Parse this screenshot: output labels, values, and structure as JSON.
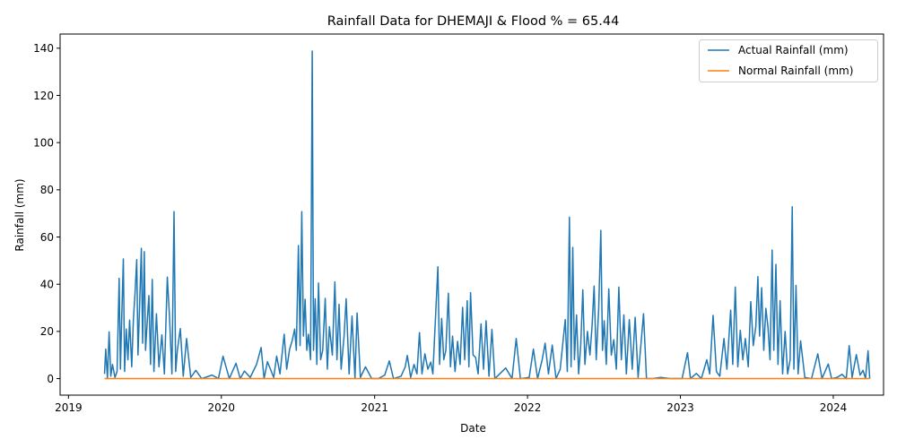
{
  "chart_data": {
    "type": "line",
    "title": "Rainfall Data for DHEMAJI & Flood % = 65.44",
    "xlabel": "Date",
    "ylabel": "Rainfall (mm)",
    "x_range": [
      "2018-12-12",
      "2024-04-30"
    ],
    "x_ticks": [
      {
        "date": "2019-01-01",
        "label": "2019"
      },
      {
        "date": "2020-01-01",
        "label": "2020"
      },
      {
        "date": "2021-01-01",
        "label": "2021"
      },
      {
        "date": "2022-01-01",
        "label": "2022"
      },
      {
        "date": "2023-01-01",
        "label": "2023"
      },
      {
        "date": "2024-01-01",
        "label": "2024"
      }
    ],
    "ylim": [
      -7,
      146
    ],
    "y_ticks": [
      0,
      20,
      40,
      60,
      80,
      100,
      120,
      140
    ],
    "grid": false,
    "legend_position": "top-right",
    "series": [
      {
        "name": "Actual Rainfall (mm)",
        "color": "#1f77b4",
        "points": [
          [
            "2019-03-28",
            2
          ],
          [
            "2019-03-31",
            12.5
          ],
          [
            "2019-04-04",
            0
          ],
          [
            "2019-04-08",
            19.8
          ],
          [
            "2019-04-12",
            1
          ],
          [
            "2019-04-16",
            6
          ],
          [
            "2019-04-22",
            0.5
          ],
          [
            "2019-04-27",
            3
          ],
          [
            "2019-05-02",
            42.5
          ],
          [
            "2019-05-05",
            4
          ],
          [
            "2019-05-08",
            25
          ],
          [
            "2019-05-12",
            50.7
          ],
          [
            "2019-05-15",
            3
          ],
          [
            "2019-05-19",
            21
          ],
          [
            "2019-05-23",
            8
          ],
          [
            "2019-05-27",
            24.8
          ],
          [
            "2019-06-01",
            5
          ],
          [
            "2019-06-05",
            25
          ],
          [
            "2019-06-09",
            36.5
          ],
          [
            "2019-06-13",
            50.4
          ],
          [
            "2019-06-16",
            10
          ],
          [
            "2019-06-20",
            32
          ],
          [
            "2019-06-24",
            55.2
          ],
          [
            "2019-06-27",
            15
          ],
          [
            "2019-07-01",
            53.8
          ],
          [
            "2019-07-04",
            12
          ],
          [
            "2019-07-08",
            24
          ],
          [
            "2019-07-12",
            35.2
          ],
          [
            "2019-07-16",
            6
          ],
          [
            "2019-07-20",
            42
          ],
          [
            "2019-07-24",
            3
          ],
          [
            "2019-07-30",
            27.5
          ],
          [
            "2019-08-05",
            5
          ],
          [
            "2019-08-12",
            18.6
          ],
          [
            "2019-08-18",
            2
          ],
          [
            "2019-08-25",
            43
          ],
          [
            "2019-08-30",
            27
          ],
          [
            "2019-09-05",
            2
          ],
          [
            "2019-09-10",
            70.8
          ],
          [
            "2019-09-14",
            3
          ],
          [
            "2019-09-18",
            12
          ],
          [
            "2019-09-25",
            21.2
          ],
          [
            "2019-10-02",
            1
          ],
          [
            "2019-10-10",
            17
          ],
          [
            "2019-10-20",
            0.5
          ],
          [
            "2019-11-01",
            3.5
          ],
          [
            "2019-11-15",
            0
          ],
          [
            "2019-12-10",
            1.5
          ],
          [
            "2019-12-25",
            0
          ],
          [
            "2020-01-05",
            9.5
          ],
          [
            "2020-01-20",
            0
          ],
          [
            "2020-02-05",
            6.5
          ],
          [
            "2020-02-15",
            0
          ],
          [
            "2020-02-25",
            3.2
          ],
          [
            "2020-03-10",
            0.5
          ],
          [
            "2020-03-25",
            6
          ],
          [
            "2020-04-05",
            13.2
          ],
          [
            "2020-04-12",
            0
          ],
          [
            "2020-04-20",
            7.2
          ],
          [
            "2020-05-05",
            0.5
          ],
          [
            "2020-05-12",
            9.5
          ],
          [
            "2020-05-20",
            2
          ],
          [
            "2020-05-30",
            18.8
          ],
          [
            "2020-06-05",
            4
          ],
          [
            "2020-06-12",
            12.5
          ],
          [
            "2020-06-18",
            16
          ],
          [
            "2020-06-24",
            21
          ],
          [
            "2020-06-28",
            12
          ],
          [
            "2020-07-03",
            56.4
          ],
          [
            "2020-07-07",
            14
          ],
          [
            "2020-07-11",
            70.8
          ],
          [
            "2020-07-15",
            18
          ],
          [
            "2020-07-19",
            33.6
          ],
          [
            "2020-07-23",
            12
          ],
          [
            "2020-07-27",
            18.8
          ],
          [
            "2020-08-01",
            8
          ],
          [
            "2020-08-05",
            138.8
          ],
          [
            "2020-08-08",
            12
          ],
          [
            "2020-08-12",
            33.8
          ],
          [
            "2020-08-16",
            6
          ],
          [
            "2020-08-20",
            40.5
          ],
          [
            "2020-08-25",
            8
          ],
          [
            "2020-08-30",
            12
          ],
          [
            "2020-09-05",
            34
          ],
          [
            "2020-09-10",
            4
          ],
          [
            "2020-09-15",
            22
          ],
          [
            "2020-09-22",
            10
          ],
          [
            "2020-09-28",
            41
          ],
          [
            "2020-10-03",
            8
          ],
          [
            "2020-10-08",
            31.5
          ],
          [
            "2020-10-13",
            4
          ],
          [
            "2020-10-20",
            18
          ],
          [
            "2020-10-25",
            33.8
          ],
          [
            "2020-11-01",
            2
          ],
          [
            "2020-11-08",
            26.5
          ],
          [
            "2020-11-15",
            0
          ],
          [
            "2020-11-20",
            27.8
          ],
          [
            "2020-11-28",
            0.5
          ],
          [
            "2020-12-10",
            5
          ],
          [
            "2020-12-25",
            0
          ],
          [
            "2021-01-10",
            0
          ],
          [
            "2021-01-25",
            1.5
          ],
          [
            "2021-02-05",
            7.5
          ],
          [
            "2021-02-15",
            0
          ],
          [
            "2021-03-05",
            1
          ],
          [
            "2021-03-15",
            5
          ],
          [
            "2021-03-20",
            9.8
          ],
          [
            "2021-03-28",
            0.5
          ],
          [
            "2021-04-05",
            6
          ],
          [
            "2021-04-12",
            2
          ],
          [
            "2021-04-18",
            19.5
          ],
          [
            "2021-04-24",
            2
          ],
          [
            "2021-05-01",
            10.5
          ],
          [
            "2021-05-08",
            4
          ],
          [
            "2021-05-15",
            7
          ],
          [
            "2021-05-20",
            2
          ],
          [
            "2021-05-27",
            28.5
          ],
          [
            "2021-06-01",
            47.4
          ],
          [
            "2021-06-05",
            6
          ],
          [
            "2021-06-10",
            25.5
          ],
          [
            "2021-06-15",
            8
          ],
          [
            "2021-06-20",
            12
          ],
          [
            "2021-06-26",
            36.2
          ],
          [
            "2021-07-01",
            5
          ],
          [
            "2021-07-06",
            18
          ],
          [
            "2021-07-12",
            3
          ],
          [
            "2021-07-18",
            15.8
          ],
          [
            "2021-07-24",
            6
          ],
          [
            "2021-07-30",
            30.2
          ],
          [
            "2021-08-04",
            8
          ],
          [
            "2021-08-10",
            33
          ],
          [
            "2021-08-14",
            5
          ],
          [
            "2021-08-18",
            36.4
          ],
          [
            "2021-08-24",
            10
          ],
          [
            "2021-08-30",
            9
          ],
          [
            "2021-09-05",
            2
          ],
          [
            "2021-09-12",
            23.2
          ],
          [
            "2021-09-18",
            4
          ],
          [
            "2021-09-24",
            24.5
          ],
          [
            "2021-10-01",
            1
          ],
          [
            "2021-10-08",
            20.8
          ],
          [
            "2021-10-15",
            0
          ],
          [
            "2021-11-10",
            4.5
          ],
          [
            "2021-11-25",
            0
          ],
          [
            "2021-12-05",
            17
          ],
          [
            "2021-12-15",
            0
          ],
          [
            "2022-01-05",
            0.5
          ],
          [
            "2022-01-15",
            12.5
          ],
          [
            "2022-01-25",
            0
          ],
          [
            "2022-02-05",
            8
          ],
          [
            "2022-02-12",
            15
          ],
          [
            "2022-02-20",
            2
          ],
          [
            "2022-03-01",
            14.2
          ],
          [
            "2022-03-10",
            0
          ],
          [
            "2022-03-20",
            4
          ],
          [
            "2022-04-01",
            25
          ],
          [
            "2022-04-06",
            3
          ],
          [
            "2022-04-11",
            68.4
          ],
          [
            "2022-04-15",
            5
          ],
          [
            "2022-04-19",
            55.6
          ],
          [
            "2022-04-23",
            8
          ],
          [
            "2022-04-28",
            27
          ],
          [
            "2022-05-03",
            2
          ],
          [
            "2022-05-08",
            14
          ],
          [
            "2022-05-13",
            37.6
          ],
          [
            "2022-05-18",
            6
          ],
          [
            "2022-05-24",
            20
          ],
          [
            "2022-05-30",
            10
          ],
          [
            "2022-06-04",
            22
          ],
          [
            "2022-06-09",
            39.2
          ],
          [
            "2022-06-14",
            8
          ],
          [
            "2022-06-20",
            30
          ],
          [
            "2022-06-25",
            62.8
          ],
          [
            "2022-06-29",
            12
          ],
          [
            "2022-07-03",
            24.5
          ],
          [
            "2022-07-08",
            6
          ],
          [
            "2022-07-14",
            38
          ],
          [
            "2022-07-20",
            10
          ],
          [
            "2022-07-26",
            16.5
          ],
          [
            "2022-08-01",
            4
          ],
          [
            "2022-08-07",
            38.8
          ],
          [
            "2022-08-13",
            8
          ],
          [
            "2022-08-19",
            27
          ],
          [
            "2022-08-25",
            2
          ],
          [
            "2022-09-01",
            25
          ],
          [
            "2022-09-08",
            4
          ],
          [
            "2022-09-15",
            26
          ],
          [
            "2022-09-22",
            0.5
          ],
          [
            "2022-10-05",
            27.5
          ],
          [
            "2022-10-12",
            0
          ],
          [
            "2022-10-25",
            0
          ],
          [
            "2022-11-15",
            0.5
          ],
          [
            "2022-12-10",
            0
          ],
          [
            "2023-01-05",
            0
          ],
          [
            "2023-01-18",
            11
          ],
          [
            "2023-01-25",
            0
          ],
          [
            "2023-02-08",
            2.2
          ],
          [
            "2023-02-20",
            0
          ],
          [
            "2023-03-05",
            8
          ],
          [
            "2023-03-12",
            2
          ],
          [
            "2023-03-20",
            26.8
          ],
          [
            "2023-03-28",
            3
          ],
          [
            "2023-04-05",
            1
          ],
          [
            "2023-04-15",
            17
          ],
          [
            "2023-04-22",
            4
          ],
          [
            "2023-05-01",
            29
          ],
          [
            "2023-05-06",
            6
          ],
          [
            "2023-05-12",
            38.8
          ],
          [
            "2023-05-18",
            5
          ],
          [
            "2023-05-24",
            20.5
          ],
          [
            "2023-05-30",
            8
          ],
          [
            "2023-06-05",
            17
          ],
          [
            "2023-06-12",
            5
          ],
          [
            "2023-06-18",
            32.6
          ],
          [
            "2023-06-24",
            14
          ],
          [
            "2023-06-30",
            22
          ],
          [
            "2023-07-05",
            43.2
          ],
          [
            "2023-07-09",
            18
          ],
          [
            "2023-07-14",
            38.5
          ],
          [
            "2023-07-19",
            12
          ],
          [
            "2023-07-24",
            29.8
          ],
          [
            "2023-07-29",
            22
          ],
          [
            "2023-08-03",
            8
          ],
          [
            "2023-08-08",
            54.5
          ],
          [
            "2023-08-12",
            12
          ],
          [
            "2023-08-17",
            48.4
          ],
          [
            "2023-08-22",
            6
          ],
          [
            "2023-08-27",
            33
          ],
          [
            "2023-09-02",
            2
          ],
          [
            "2023-09-08",
            20
          ],
          [
            "2023-09-14",
            2
          ],
          [
            "2023-09-20",
            8
          ],
          [
            "2023-09-25",
            72.8
          ],
          [
            "2023-09-29",
            4
          ],
          [
            "2023-10-04",
            39.5
          ],
          [
            "2023-10-09",
            2
          ],
          [
            "2023-10-15",
            16
          ],
          [
            "2023-10-25",
            0.5
          ],
          [
            "2023-11-10",
            0
          ],
          [
            "2023-11-25",
            10.5
          ],
          [
            "2023-12-05",
            0
          ],
          [
            "2023-12-20",
            6.2
          ],
          [
            "2023-12-28",
            0
          ],
          [
            "2024-01-10",
            0.5
          ],
          [
            "2024-01-22",
            1.8
          ],
          [
            "2024-02-01",
            0
          ],
          [
            "2024-02-08",
            14
          ],
          [
            "2024-02-15",
            0.5
          ],
          [
            "2024-02-25",
            10.2
          ],
          [
            "2024-03-05",
            1.5
          ],
          [
            "2024-03-12",
            3.5
          ],
          [
            "2024-03-18",
            0
          ],
          [
            "2024-03-24",
            11.8
          ],
          [
            "2024-03-28",
            0
          ]
        ]
      },
      {
        "name": "Normal Rainfall (mm)",
        "color": "#ff7f0e",
        "points": [
          [
            "2019-03-28",
            0
          ],
          [
            "2024-03-28",
            0
          ]
        ]
      }
    ]
  }
}
